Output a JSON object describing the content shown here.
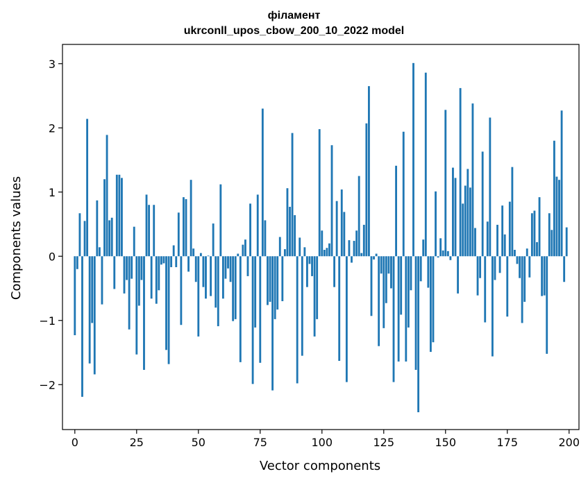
{
  "chart_data": {
    "type": "bar",
    "title": "філамент",
    "subtitle": "ukrconll_upos_cbow_200_10_2022 model",
    "xlabel": "Vector components",
    "ylabel": "Components values",
    "xlim": [
      -5,
      204
    ],
    "ylim": [
      -2.7,
      3.3
    ],
    "xticks": [
      0,
      25,
      50,
      75,
      100,
      125,
      150,
      175,
      200
    ],
    "yticks": [
      -2,
      -1,
      0,
      1,
      2,
      3
    ],
    "ytick_labels": [
      "−2",
      "−1",
      "0",
      "1",
      "2",
      "3"
    ],
    "grid": false,
    "color": "#1f77b4",
    "values": [
      -1.23,
      -0.2,
      0.67,
      -2.19,
      0.55,
      2.14,
      -1.67,
      -1.04,
      -1.84,
      0.87,
      0.14,
      -0.75,
      1.2,
      1.89,
      0.56,
      0.6,
      -0.51,
      1.27,
      1.27,
      1.22,
      -0.58,
      -0.37,
      -1.14,
      -0.35,
      0.46,
      -1.53,
      -0.77,
      -0.37,
      -1.77,
      0.96,
      0.8,
      -0.66,
      0.8,
      -0.74,
      -0.53,
      -0.13,
      -0.11,
      -1.46,
      -1.68,
      -0.17,
      0.17,
      -0.17,
      0.68,
      -1.07,
      0.92,
      0.89,
      -0.24,
      1.19,
      0.12,
      -0.4,
      -1.25,
      0.05,
      -0.48,
      -0.66,
      0.01,
      -0.62,
      0.51,
      -0.8,
      -1.09,
      1.12,
      -0.66,
      -0.35,
      -0.19,
      -0.4,
      -1.01,
      -0.98,
      0.04,
      -1.65,
      0.18,
      0.26,
      -0.31,
      0.82,
      -1.99,
      -1.11,
      0.96,
      -1.66,
      2.3,
      0.56,
      -0.76,
      -0.71,
      -2.09,
      -0.98,
      -0.83,
      0.3,
      -0.7,
      0.11,
      1.06,
      0.77,
      1.92,
      0.64,
      -1.98,
      0.29,
      -1.55,
      0.14,
      -0.48,
      -0.12,
      -0.31,
      -1.25,
      -0.98,
      1.98,
      0.4,
      0.1,
      0.13,
      0.2,
      1.73,
      -0.48,
      0.86,
      -1.63,
      1.04,
      0.69,
      -1.96,
      0.25,
      -0.1,
      0.24,
      0.4,
      1.25,
      0.05,
      0.49,
      2.07,
      2.65,
      -0.93,
      -0.05,
      0.04,
      -1.4,
      -0.27,
      -1.12,
      -0.73,
      -0.27,
      -0.5,
      -1.96,
      1.41,
      -1.64,
      -0.91,
      1.94,
      -1.64,
      -1.11,
      -0.53,
      3.01,
      -1.77,
      -2.43,
      -0.39,
      0.26,
      2.86,
      -0.49,
      -1.49,
      -1.34,
      1.01,
      -0.02,
      0.28,
      0.09,
      2.28,
      0.08,
      -0.06,
      1.38,
      1.22,
      -0.58,
      2.62,
      0.82,
      1.1,
      1.36,
      1.07,
      2.38,
      0.44,
      -0.61,
      -0.34,
      1.63,
      -1.03,
      0.54,
      2.16,
      -1.56,
      -0.37,
      0.49,
      -0.26,
      0.79,
      0.34,
      -0.94,
      0.85,
      1.39,
      0.1,
      -0.12,
      -0.34,
      -1.04,
      -0.71,
      0.12,
      -0.33,
      0.67,
      0.71,
      0.22,
      0.92,
      -0.62,
      -0.61,
      -1.52,
      0.67,
      0.41,
      1.8,
      1.24,
      1.19,
      2.27,
      -0.4,
      0.45
    ]
  }
}
